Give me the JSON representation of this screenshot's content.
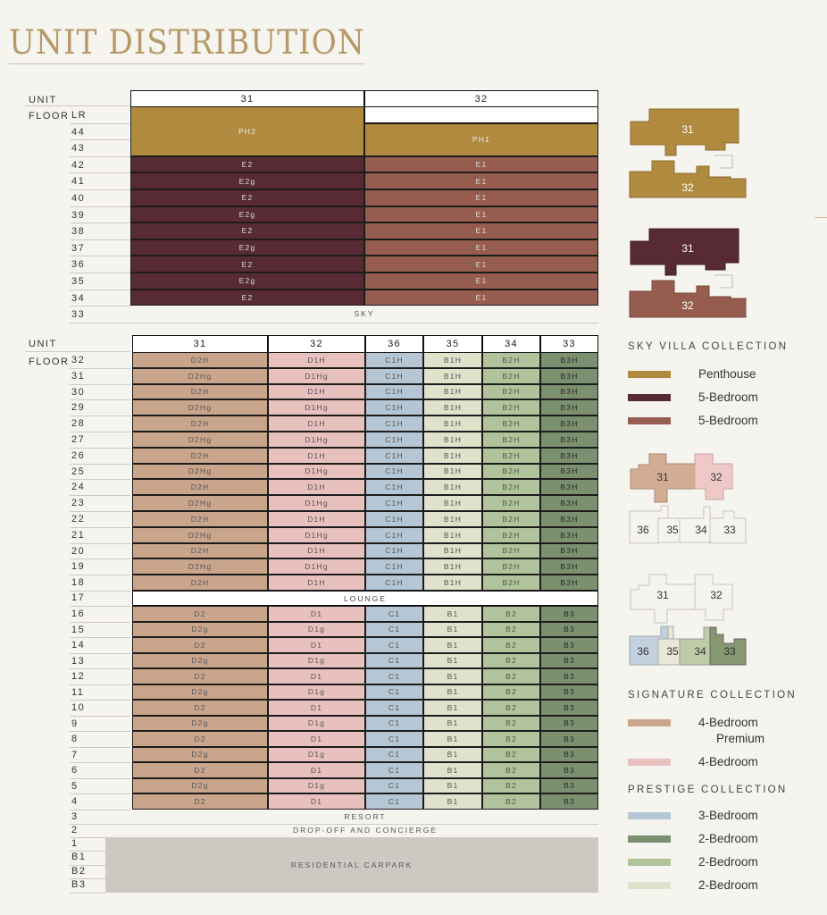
{
  "title": "UNIT DISTRIBUTION",
  "colors": {
    "PH": "#b08a3e",
    "E2": "#582a33",
    "E1": "#955c4f",
    "D2": "#c9a58c",
    "D1": "#e8c0bd",
    "C1": "#b5c7d4",
    "B1": "#e0e2cc",
    "B2": "#b1c39b",
    "B3": "#7a906e",
    "carpark": "#cdc8c1"
  },
  "sky_table": {
    "unit_label": "UNIT",
    "floor_label": "FLOOR",
    "units": [
      "31",
      "32"
    ],
    "floors": [
      "LR",
      "44",
      "43",
      "42",
      "41",
      "40",
      "39",
      "38",
      "37",
      "36",
      "35",
      "34",
      "33"
    ],
    "penthouse": [
      {
        "unit": "31",
        "label": "PH2",
        "from": "LR",
        "to": "43"
      },
      {
        "unit": "32",
        "label": "PH1",
        "from": "44",
        "to": "43"
      }
    ],
    "rows": [
      {
        "floor": "42",
        "cells": [
          "E2",
          "E1"
        ]
      },
      {
        "floor": "41",
        "cells": [
          "E2g",
          "E1"
        ]
      },
      {
        "floor": "40",
        "cells": [
          "E2",
          "E1"
        ]
      },
      {
        "floor": "39",
        "cells": [
          "E2g",
          "E1"
        ]
      },
      {
        "floor": "38",
        "cells": [
          "E2",
          "E1"
        ]
      },
      {
        "floor": "37",
        "cells": [
          "E2g",
          "E1"
        ]
      },
      {
        "floor": "36",
        "cells": [
          "E2",
          "E1"
        ]
      },
      {
        "floor": "35",
        "cells": [
          "E2g",
          "E1"
        ]
      },
      {
        "floor": "34",
        "cells": [
          "E2",
          "E1"
        ]
      }
    ],
    "sky_band": "SKY"
  },
  "main_table": {
    "unit_label": "UNIT",
    "floor_label": "FLOOR",
    "units": [
      "31",
      "32",
      "36",
      "35",
      "34",
      "33"
    ],
    "upper_rows": [
      {
        "floor": "32",
        "cells": [
          "D2H",
          "D1H",
          "C1H",
          "B1H",
          "B2H",
          "B3H"
        ]
      },
      {
        "floor": "31",
        "cells": [
          "D2Hg",
          "D1Hg",
          "C1H",
          "B1H",
          "B2H",
          "B3H"
        ]
      },
      {
        "floor": "30",
        "cells": [
          "D2H",
          "D1H",
          "C1H",
          "B1H",
          "B2H",
          "B3H"
        ]
      },
      {
        "floor": "29",
        "cells": [
          "D2Hg",
          "D1Hg",
          "C1H",
          "B1H",
          "B2H",
          "B3H"
        ]
      },
      {
        "floor": "28",
        "cells": [
          "D2H",
          "D1H",
          "C1H",
          "B1H",
          "B2H",
          "B3H"
        ]
      },
      {
        "floor": "27",
        "cells": [
          "D2Hg",
          "D1Hg",
          "C1H",
          "B1H",
          "B2H",
          "B3H"
        ]
      },
      {
        "floor": "26",
        "cells": [
          "D2H",
          "D1H",
          "C1H",
          "B1H",
          "B2H",
          "B3H"
        ]
      },
      {
        "floor": "25",
        "cells": [
          "D2Hg",
          "D1Hg",
          "C1H",
          "B1H",
          "B2H",
          "B3H"
        ]
      },
      {
        "floor": "24",
        "cells": [
          "D2H",
          "D1H",
          "C1H",
          "B1H",
          "B2H",
          "B3H"
        ]
      },
      {
        "floor": "23",
        "cells": [
          "D2Hg",
          "D1Hg",
          "C1H",
          "B1H",
          "B2H",
          "B3H"
        ]
      },
      {
        "floor": "22",
        "cells": [
          "D2H",
          "D1H",
          "C1H",
          "B1H",
          "B2H",
          "B3H"
        ]
      },
      {
        "floor": "21",
        "cells": [
          "D2Hg",
          "D1Hg",
          "C1H",
          "B1H",
          "B2H",
          "B3H"
        ]
      },
      {
        "floor": "20",
        "cells": [
          "D2H",
          "D1H",
          "C1H",
          "B1H",
          "B2H",
          "B3H"
        ]
      },
      {
        "floor": "19",
        "cells": [
          "D2Hg",
          "D1Hg",
          "C1H",
          "B1H",
          "B2H",
          "B3H"
        ]
      },
      {
        "floor": "18",
        "cells": [
          "D2H",
          "D1H",
          "C1H",
          "B1H",
          "B2H",
          "B3H"
        ]
      }
    ],
    "lounge": {
      "floor": "17",
      "label": "LOUNGE"
    },
    "lower_rows": [
      {
        "floor": "16",
        "cells": [
          "D2",
          "D1",
          "C1",
          "B1",
          "B2",
          "B3"
        ]
      },
      {
        "floor": "15",
        "cells": [
          "D2g",
          "D1g",
          "C1",
          "B1",
          "B2",
          "B3"
        ]
      },
      {
        "floor": "14",
        "cells": [
          "D2",
          "D1",
          "C1",
          "B1",
          "B2",
          "B3"
        ]
      },
      {
        "floor": "13",
        "cells": [
          "D2g",
          "D1g",
          "C1",
          "B1",
          "B2",
          "B3"
        ]
      },
      {
        "floor": "12",
        "cells": [
          "D2",
          "D1",
          "C1",
          "B1",
          "B2",
          "B3"
        ]
      },
      {
        "floor": "11",
        "cells": [
          "D2g",
          "D1g",
          "C1",
          "B1",
          "B2",
          "B3"
        ]
      },
      {
        "floor": "10",
        "cells": [
          "D2",
          "D1",
          "C1",
          "B1",
          "B2",
          "B3"
        ]
      },
      {
        "floor": "9",
        "cells": [
          "D2g",
          "D1g",
          "C1",
          "B1",
          "B2",
          "B3"
        ]
      },
      {
        "floor": "8",
        "cells": [
          "D2",
          "D1",
          "C1",
          "B1",
          "B2",
          "B3"
        ]
      },
      {
        "floor": "7",
        "cells": [
          "D2g",
          "D1g",
          "C1",
          "B1",
          "B2",
          "B3"
        ]
      },
      {
        "floor": "6",
        "cells": [
          "D2",
          "D1",
          "C1",
          "B1",
          "B2",
          "B3"
        ]
      },
      {
        "floor": "5",
        "cells": [
          "D2g",
          "D1g",
          "C1",
          "B1",
          "B2",
          "B3"
        ]
      },
      {
        "floor": "4",
        "cells": [
          "D2",
          "D1",
          "C1",
          "B1",
          "B2",
          "B3"
        ]
      }
    ],
    "resort": {
      "floor": "3",
      "label": "RESORT"
    },
    "dropoff": {
      "floor": "2",
      "label": "DROP-OFF AND CONCIERGE"
    },
    "carpark": {
      "floors": [
        "1",
        "B1",
        "B2",
        "B3"
      ],
      "label": "RESIDENTIAL CARPARK"
    }
  },
  "legend": {
    "plan_units": {
      "a": "31",
      "b": "32",
      "c": "36",
      "d": "35",
      "e": "34",
      "f": "33"
    },
    "sky_villa": {
      "heading": "SKY VILLA COLLECTION",
      "items": [
        {
          "label": "Penthouse",
          "color": "#b08a3e"
        },
        {
          "label": "5-Bedroom",
          "color": "#582a33"
        },
        {
          "label": "5-Bedroom",
          "color": "#955c4f"
        }
      ]
    },
    "signature": {
      "heading": "SIGNATURE COLLECTION",
      "items": [
        {
          "label": "4-Bedroom",
          "label2": "Premium",
          "color": "#c9a58c"
        },
        {
          "label": "4-Bedroom",
          "color": "#e8c0bd"
        }
      ]
    },
    "prestige": {
      "heading": "PRESTIGE COLLECTION",
      "items": [
        {
          "label": "3-Bedroom",
          "color": "#b5c7d4"
        },
        {
          "label": "2-Bedroom",
          "color": "#7a906e"
        },
        {
          "label": "2-Bedroom",
          "color": "#b1c39b"
        },
        {
          "label": "2-Bedroom",
          "color": "#e0e2cc"
        }
      ]
    }
  }
}
